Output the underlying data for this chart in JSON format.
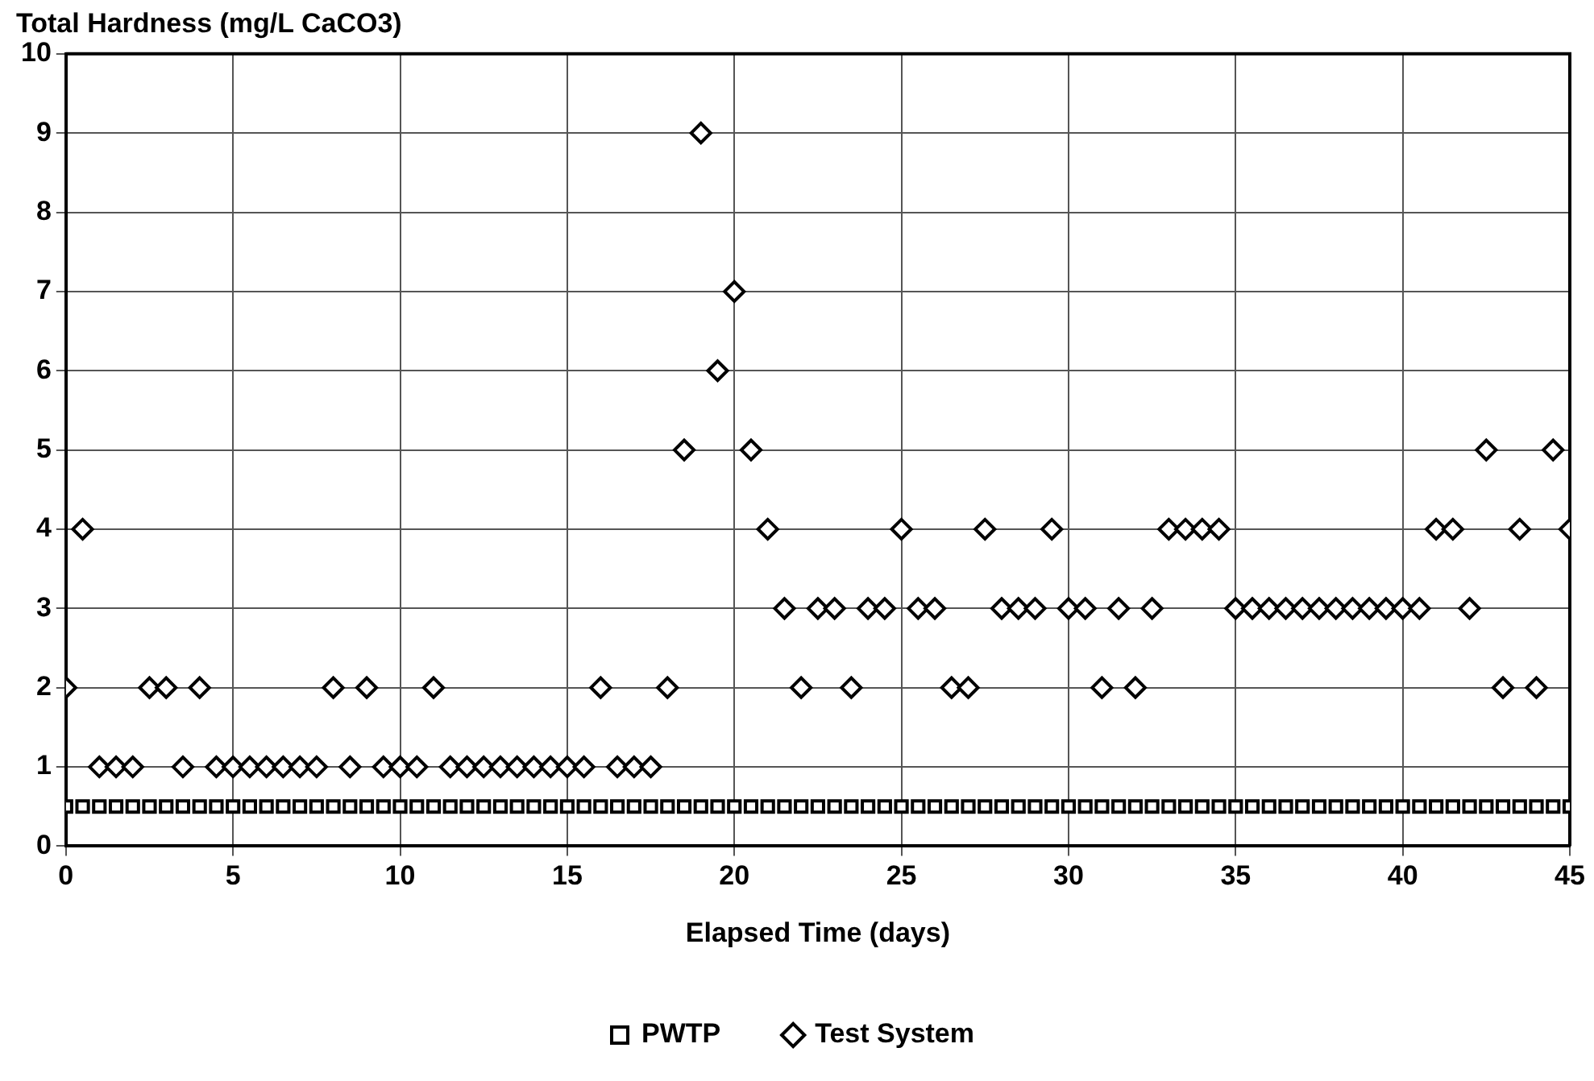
{
  "chart_data": {
    "type": "scatter",
    "title": "Total Hardness (mg/L CaCO3)",
    "xlabel": "Elapsed Time (days)",
    "xlim": [
      0,
      45
    ],
    "xticks": [
      0,
      5,
      10,
      15,
      20,
      25,
      30,
      35,
      40,
      45
    ],
    "ylim": [
      0,
      10
    ],
    "yticks": [
      0,
      1,
      2,
      3,
      4,
      5,
      6,
      7,
      8,
      9,
      10
    ],
    "grid": true,
    "legend": "bottom",
    "series": [
      {
        "name": "PWTP",
        "color": "#000000",
        "marker": "square",
        "x": [
          0,
          0.5,
          1,
          1.5,
          2,
          2.5,
          3,
          3.5,
          4,
          4.5,
          5,
          5.5,
          6,
          6.5,
          7,
          7.5,
          8,
          8.5,
          9,
          9.5,
          10,
          10.5,
          11,
          11.5,
          12,
          12.5,
          13,
          13.5,
          14,
          14.5,
          15,
          15.5,
          16,
          16.5,
          17,
          17.5,
          18,
          18.5,
          19,
          19.5,
          20,
          20.5,
          21,
          21.5,
          22,
          22.5,
          23,
          23.5,
          24,
          24.5,
          25,
          25.5,
          26,
          26.5,
          27,
          27.5,
          28,
          28.5,
          29,
          29.5,
          30,
          30.5,
          31,
          31.5,
          32,
          32.5,
          33,
          33.5,
          34,
          34.5,
          35,
          35.5,
          36,
          36.5,
          37,
          37.5,
          38,
          38.5,
          39,
          39.5,
          40,
          40.5,
          41,
          41.5,
          42,
          42.5,
          43,
          43.5,
          44,
          44.5,
          45
        ],
        "values": [
          0.5,
          0.5,
          0.5,
          0.5,
          0.5,
          0.5,
          0.5,
          0.5,
          0.5,
          0.5,
          0.5,
          0.5,
          0.5,
          0.5,
          0.5,
          0.5,
          0.5,
          0.5,
          0.5,
          0.5,
          0.5,
          0.5,
          0.5,
          0.5,
          0.5,
          0.5,
          0.5,
          0.5,
          0.5,
          0.5,
          0.5,
          0.5,
          0.5,
          0.5,
          0.5,
          0.5,
          0.5,
          0.5,
          0.5,
          0.5,
          0.5,
          0.5,
          0.5,
          0.5,
          0.5,
          0.5,
          0.5,
          0.5,
          0.5,
          0.5,
          0.5,
          0.5,
          0.5,
          0.5,
          0.5,
          0.5,
          0.5,
          0.5,
          0.5,
          0.5,
          0.5,
          0.5,
          0.5,
          0.5,
          0.5,
          0.5,
          0.5,
          0.5,
          0.5,
          0.5,
          0.5,
          0.5,
          0.5,
          0.5,
          0.5,
          0.5,
          0.5,
          0.5,
          0.5,
          0.5,
          0.5,
          0.5,
          0.5,
          0.5,
          0.5,
          0.5,
          0.5,
          0.5,
          0.5,
          0.5,
          0.5
        ]
      },
      {
        "name": "Test System",
        "color": "#000000",
        "marker": "diamond",
        "x": [
          0,
          0.5,
          1,
          1.5,
          2,
          2.5,
          3,
          3.5,
          4,
          4.5,
          5,
          5.5,
          6,
          6.5,
          7,
          7.5,
          8,
          8.5,
          9,
          9.5,
          10,
          10.5,
          11,
          11.5,
          12,
          12.5,
          13,
          13.5,
          14,
          14.5,
          15,
          15.5,
          16,
          16.5,
          17,
          17.5,
          18,
          18.5,
          19,
          19.5,
          20,
          20.5,
          21,
          21.5,
          22,
          22.5,
          23,
          23.5,
          24,
          24.5,
          25,
          25.5,
          26,
          26.5,
          27,
          27.5,
          28,
          28.5,
          29,
          29.5,
          30,
          30.5,
          31,
          31.5,
          32,
          32.5,
          33,
          33.5,
          34,
          34.5,
          35,
          35.5,
          36,
          36.5,
          37,
          37.5,
          38,
          38.5,
          39,
          39.5,
          40,
          40.5,
          41,
          41.5,
          42,
          42.5,
          43,
          43.5,
          44,
          44.5,
          45
        ],
        "values": [
          2,
          4,
          1,
          1,
          1,
          2,
          2,
          1,
          2,
          1,
          1,
          1,
          1,
          1,
          1,
          1,
          2,
          1,
          2,
          1,
          1,
          1,
          2,
          1,
          1,
          1,
          1,
          1,
          1,
          1,
          1,
          1,
          2,
          1,
          1,
          1,
          2,
          5,
          9,
          6,
          7,
          5,
          4,
          3,
          2,
          3,
          3,
          2,
          3,
          3,
          4,
          3,
          3,
          2,
          2,
          4,
          3,
          3,
          3,
          4,
          3,
          3,
          2,
          3,
          2,
          3,
          4,
          4,
          4,
          4,
          3,
          3,
          3,
          3,
          3,
          3,
          3,
          3,
          3,
          3,
          3,
          3,
          4,
          4,
          3,
          5,
          2,
          4,
          2,
          5,
          4
        ]
      }
    ]
  }
}
